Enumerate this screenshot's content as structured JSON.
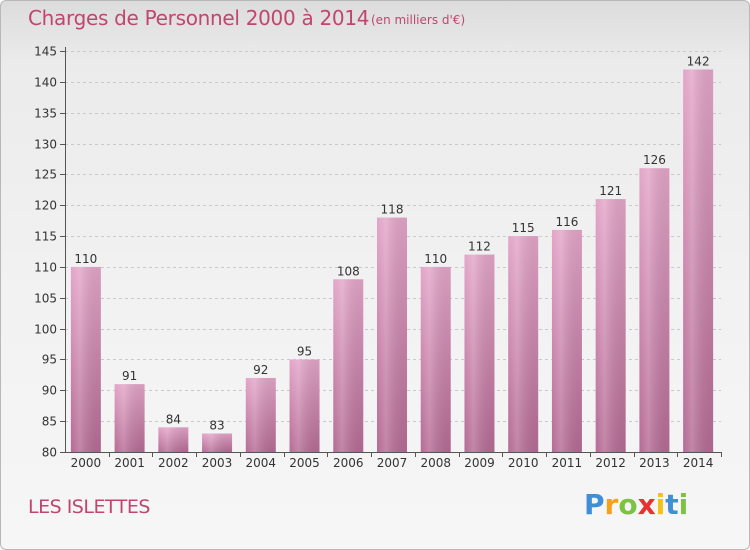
{
  "header": {
    "title": "Charges de Personnel 2000 à 2014",
    "subtitle": "(en milliers d'€)"
  },
  "footer": {
    "commune": "LES ISLETTES",
    "logo": [
      "P",
      "r",
      "o",
      "x",
      "i",
      "t",
      "i"
    ]
  },
  "colors": {
    "title": "#c0466e",
    "bar_top": "#e3a5c8",
    "bar_bottom": "#b56b94",
    "logo": [
      "#3e8fd6",
      "#f3a21a",
      "#7dc242",
      "#e8322d",
      "#f3c21a",
      "#3e8fd6",
      "#7dc242"
    ]
  },
  "chart_data": {
    "type": "bar",
    "categories": [
      "2000",
      "2001",
      "2002",
      "2003",
      "2004",
      "2005",
      "2006",
      "2007",
      "2008",
      "2009",
      "2010",
      "2011",
      "2012",
      "2013",
      "2014"
    ],
    "values": [
      110,
      91,
      84,
      83,
      92,
      95,
      108,
      118,
      110,
      112,
      115,
      116,
      121,
      126,
      142
    ],
    "data_labels": [
      "110",
      "91",
      "84",
      "83",
      "92",
      "95",
      "108",
      "118",
      "110",
      "112",
      "115",
      "116",
      "121",
      "126",
      "142"
    ],
    "yticks": [
      "80",
      "85",
      "90",
      "95",
      "100",
      "105",
      "110",
      "115",
      "120",
      "125",
      "130",
      "135",
      "140",
      "145"
    ],
    "ylim": [
      80,
      145
    ],
    "grid": true,
    "legend": "none"
  }
}
